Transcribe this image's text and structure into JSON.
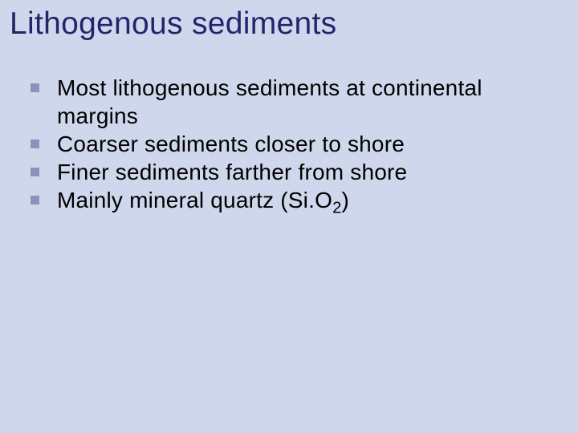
{
  "slide": {
    "background_color": "#ced7eb",
    "title": {
      "text": "Lithogenous sediments",
      "color": "#24246c",
      "fontsize": 39
    },
    "bullets": {
      "marker_color": "#9090b8",
      "text_color": "#000000",
      "fontsize": 28,
      "items": [
        {
          "text": "Most lithogenous sediments at continental margins"
        },
        {
          "text": "Coarser sediments closer to shore"
        },
        {
          "text": "Finer sediments farther from shore"
        },
        {
          "text_html": "Mainly mineral quartz (Si.O<span class=\"sub\">2</span>)"
        }
      ]
    }
  }
}
